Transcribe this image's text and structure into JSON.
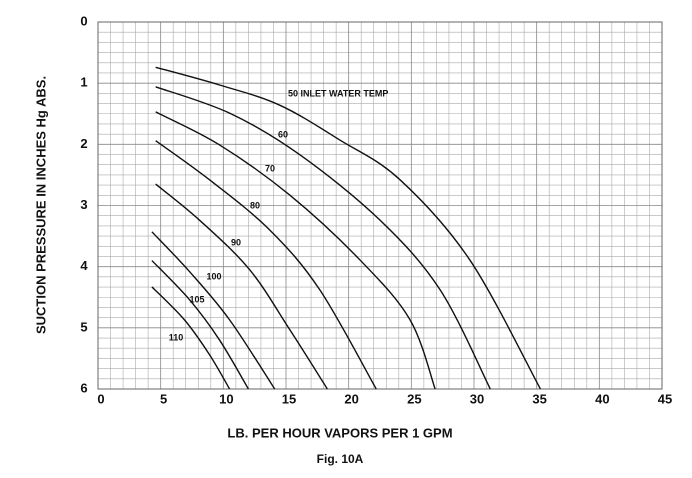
{
  "chart_data": {
    "type": "line",
    "title": "Fig. 10A",
    "x_label": "LB. PER HOUR VAPORS PER 1 GPM",
    "y_label": "SUCTION PRESSURE IN INCHES Hg ABS.",
    "xlim": [
      0,
      45
    ],
    "ylim": [
      0,
      6
    ],
    "y_inverted": true,
    "xticks": [
      0,
      5,
      10,
      15,
      20,
      25,
      30,
      35,
      40,
      45
    ],
    "yticks": [
      0,
      1,
      2,
      3,
      4,
      5,
      6
    ],
    "grid": true,
    "series": [
      {
        "name": "50 INLET WATER TEMP",
        "color": "#111111",
        "x": [
          4.6,
          9.7,
          14.5,
          19.3,
          24.1,
          29.7,
          35.3
        ],
        "values": [
          0.74,
          1.03,
          1.36,
          1.93,
          2.58,
          3.9,
          6
        ]
      },
      {
        "name": "60",
        "color": "#111111",
        "x": [
          4.6,
          10.5,
          16.1,
          22.5,
          27.3,
          31.3
        ],
        "values": [
          1.06,
          1.49,
          2.17,
          3.24,
          4.38,
          6
        ]
      },
      {
        "name": "70",
        "color": "#111111",
        "x": [
          4.6,
          9.7,
          15.3,
          20.9,
          24.9,
          26.9
        ],
        "values": [
          1.47,
          2.01,
          2.83,
          3.89,
          4.87,
          6
        ]
      },
      {
        "name": "80",
        "color": "#111111",
        "x": [
          4.6,
          8.9,
          13.7,
          17.7,
          22.2
        ],
        "values": [
          1.94,
          2.58,
          3.4,
          4.38,
          6
        ]
      },
      {
        "name": "90",
        "color": "#111111",
        "x": [
          4.6,
          8.1,
          12.1,
          15.3,
          18.3
        ],
        "values": [
          2.65,
          3.24,
          4.05,
          5.03,
          6
        ]
      },
      {
        "name": "100",
        "color": "#111111",
        "x": [
          4.3,
          7.3,
          10.5,
          14.1
        ],
        "values": [
          3.43,
          4.08,
          4.87,
          6
        ]
      },
      {
        "name": "105",
        "color": "#111111",
        "x": [
          4.3,
          7.3,
          9.7,
          12
        ],
        "values": [
          3.9,
          4.54,
          5.2,
          6
        ]
      },
      {
        "name": "110",
        "color": "#111111",
        "x": [
          4.3,
          6.9,
          8.9,
          10.5
        ],
        "values": [
          4.33,
          4.87,
          5.44,
          6
        ]
      }
    ]
  }
}
